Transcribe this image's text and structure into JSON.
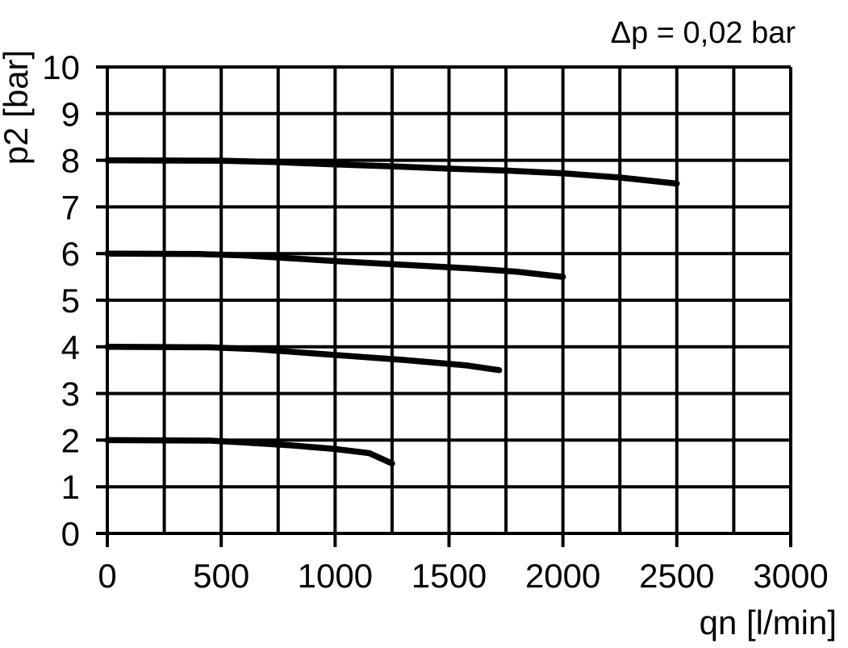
{
  "page": {
    "background": "#ffffff",
    "ink": "#000000"
  },
  "chart_data": {
    "type": "line",
    "title": "Δp = 0,02 bar",
    "xlabel": "qn [l/min]",
    "ylabel": "p2 [bar]",
    "xlim": [
      0,
      3000
    ],
    "ylim": [
      0,
      10
    ],
    "x_grid_step": 250,
    "y_grid_step": 1,
    "x_ticks": [
      0,
      500,
      1000,
      1500,
      2000,
      2500,
      3000
    ],
    "y_ticks": [
      0,
      1,
      2,
      3,
      4,
      5,
      6,
      7,
      8,
      9,
      10
    ],
    "grid": true,
    "legend": false,
    "line_color": "#000000",
    "grid_color": "#000000",
    "series": [
      {
        "name": "curve-8-bar",
        "start_p2_bar": 8,
        "end_point": [
          2500,
          7.5
        ],
        "points": [
          [
            0,
            8.0
          ],
          [
            500,
            7.99
          ],
          [
            750,
            7.96
          ],
          [
            1000,
            7.91
          ],
          [
            1250,
            7.87
          ],
          [
            1500,
            7.82
          ],
          [
            1750,
            7.78
          ],
          [
            2000,
            7.72
          ],
          [
            2250,
            7.63
          ],
          [
            2500,
            7.5
          ]
        ]
      },
      {
        "name": "curve-6-bar",
        "start_p2_bar": 6,
        "end_point": [
          2000,
          5.5
        ],
        "points": [
          [
            0,
            6.0
          ],
          [
            400,
            5.99
          ],
          [
            600,
            5.96
          ],
          [
            800,
            5.9
          ],
          [
            1000,
            5.84
          ],
          [
            1300,
            5.76
          ],
          [
            1600,
            5.68
          ],
          [
            1800,
            5.61
          ],
          [
            2000,
            5.5
          ]
        ]
      },
      {
        "name": "curve-4-bar",
        "start_p2_bar": 4,
        "end_point": [
          1720,
          3.5
        ],
        "points": [
          [
            0,
            4.0
          ],
          [
            450,
            3.99
          ],
          [
            650,
            3.95
          ],
          [
            875,
            3.87
          ],
          [
            1100,
            3.79
          ],
          [
            1300,
            3.72
          ],
          [
            1580,
            3.6
          ],
          [
            1720,
            3.5
          ]
        ]
      },
      {
        "name": "curve-2-bar",
        "start_p2_bar": 2,
        "end_point": [
          1250,
          1.5
        ],
        "points": [
          [
            0,
            2.0
          ],
          [
            450,
            1.99
          ],
          [
            600,
            1.95
          ],
          [
            800,
            1.89
          ],
          [
            1000,
            1.81
          ],
          [
            1150,
            1.72
          ],
          [
            1250,
            1.5
          ]
        ]
      }
    ]
  }
}
